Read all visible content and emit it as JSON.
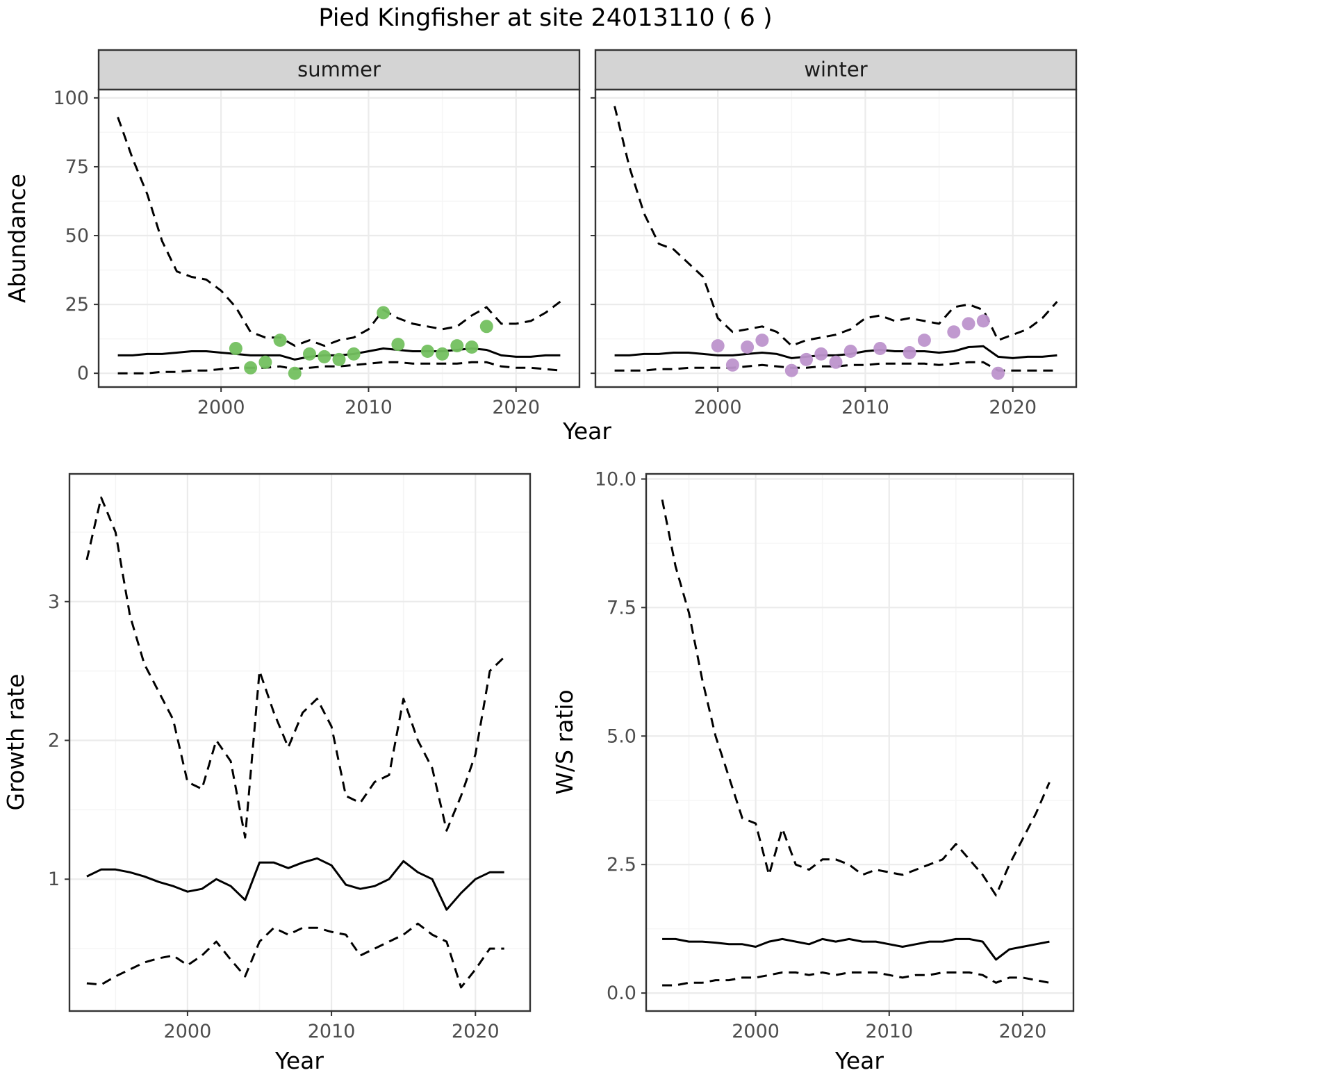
{
  "title": "Pied Kingfisher at site 24013110 ( 6 )",
  "style": {
    "summer_point_color": "#73C05F",
    "winter_point_color": "#BD93CC",
    "line_color": "#000000",
    "grid_major_color": "#EBEBEB",
    "grid_minor_color": "#F5F5F5",
    "panel_border_color": "#333333",
    "strip_fill": "#d4d4d4"
  },
  "chart_data": [
    {
      "id": "abundance-summer",
      "type": "line",
      "facet_label": "summer",
      "xlabel": "Year",
      "ylabel": "Abundance",
      "xlim": [
        1991.7,
        2024.3
      ],
      "ylim": [
        -5,
        103
      ],
      "xticks": [
        2000,
        2010,
        2020
      ],
      "xtick_labels": [
        "2000",
        "2010",
        "2020"
      ],
      "xticks_minor": [
        1995,
        2005,
        2015
      ],
      "yticks": [
        0,
        25,
        50,
        75,
        100
      ],
      "ytick_labels": [
        "0",
        "25",
        "50",
        "75",
        "100"
      ],
      "yticks_minor": [
        12.5,
        37.5,
        62.5,
        87.5
      ],
      "x": [
        1993,
        1994,
        1995,
        1996,
        1997,
        1998,
        1999,
        2000,
        2001,
        2002,
        2003,
        2004,
        2005,
        2006,
        2007,
        2008,
        2009,
        2010,
        2011,
        2012,
        2013,
        2014,
        2015,
        2016,
        2017,
        2018,
        2019,
        2020,
        2021,
        2022,
        2023
      ],
      "series": [
        {
          "name": "upper-ci",
          "style": "dashed",
          "values": [
            93,
            78,
            65,
            48,
            37,
            35,
            34,
            30,
            24,
            15,
            13,
            13,
            10,
            12,
            10,
            12,
            13,
            16,
            23,
            20,
            18,
            17,
            16,
            17,
            21,
            24,
            18,
            18,
            19,
            22,
            26
          ]
        },
        {
          "name": "median",
          "style": "solid",
          "values": [
            6.5,
            6.5,
            7,
            7,
            7.5,
            8,
            8,
            7.5,
            7,
            6.5,
            6.5,
            6.5,
            5,
            6,
            6.5,
            6.5,
            7,
            8,
            9,
            8.5,
            8,
            8,
            8,
            8.5,
            9,
            8.5,
            6.5,
            6,
            6,
            6.5,
            6.5
          ]
        },
        {
          "name": "lower-ci",
          "style": "dashed",
          "values": [
            0,
            0,
            0,
            0.5,
            0.5,
            1,
            1,
            1.5,
            2,
            2,
            2,
            2.5,
            1.5,
            2,
            2.5,
            2.5,
            3,
            3.5,
            4,
            4,
            3.5,
            3.5,
            3.5,
            3.5,
            4,
            4,
            2.5,
            2,
            2,
            1.5,
            1
          ]
        }
      ],
      "points": {
        "name": "observed-counts",
        "color": "#73C05F",
        "x": [
          2001,
          2002,
          2003,
          2004,
          2005,
          2006,
          2007,
          2008,
          2009,
          2011,
          2012,
          2014,
          2015,
          2016,
          2017,
          2018
        ],
        "y": [
          9,
          2,
          4,
          12,
          0,
          7,
          6,
          5,
          7,
          22,
          10.5,
          8,
          7,
          10,
          9.5,
          17
        ]
      }
    },
    {
      "id": "abundance-winter",
      "type": "line",
      "facet_label": "winter",
      "xlabel": "Year",
      "ylabel": "Abundance",
      "xlim": [
        1991.7,
        2024.3
      ],
      "ylim": [
        -5,
        103
      ],
      "xticks": [
        2000,
        2010,
        2020
      ],
      "xtick_labels": [
        "2000",
        "2010",
        "2020"
      ],
      "xticks_minor": [
        1995,
        2005,
        2015
      ],
      "yticks": [
        0,
        25,
        50,
        75,
        100
      ],
      "ytick_labels": [
        "0",
        "25",
        "50",
        "75",
        "100"
      ],
      "yticks_minor": [
        12.5,
        37.5,
        62.5,
        87.5
      ],
      "x": [
        1993,
        1994,
        1995,
        1996,
        1997,
        1998,
        1999,
        2000,
        2001,
        2002,
        2003,
        2004,
        2005,
        2006,
        2007,
        2008,
        2009,
        2010,
        2011,
        2012,
        2013,
        2014,
        2015,
        2016,
        2017,
        2018,
        2019,
        2020,
        2021,
        2022,
        2023
      ],
      "series": [
        {
          "name": "upper-ci",
          "style": "dashed",
          "values": [
            97,
            75,
            58,
            47,
            45,
            40,
            35,
            20,
            15,
            16,
            17,
            15,
            10,
            12,
            13,
            14,
            16,
            20,
            21,
            19,
            20,
            19,
            18,
            24,
            25,
            23,
            12,
            14,
            16,
            20,
            26
          ]
        },
        {
          "name": "median",
          "style": "solid",
          "values": [
            6.5,
            6.5,
            7,
            7,
            7.5,
            7.5,
            7,
            6.5,
            6.5,
            7,
            7.5,
            7,
            5.5,
            6,
            6.5,
            6.5,
            7,
            8,
            8.5,
            8,
            8,
            8,
            7.5,
            8,
            9.5,
            9.8,
            6,
            5.5,
            6,
            6,
            6.5
          ]
        },
        {
          "name": "lower-ci",
          "style": "dashed",
          "values": [
            1,
            1,
            1,
            1.5,
            1.5,
            2,
            2,
            2,
            2,
            2.5,
            3,
            2.5,
            2,
            2,
            2.5,
            2.5,
            3,
            3,
            3.5,
            3.5,
            3.5,
            3.5,
            3,
            3.5,
            4,
            4,
            1,
            1,
            1,
            1,
            1
          ]
        }
      ],
      "points": {
        "name": "observed-counts",
        "color": "#BD93CC",
        "x": [
          2000,
          2001,
          2002,
          2003,
          2005,
          2006,
          2007,
          2008,
          2009,
          2011,
          2013,
          2014,
          2016,
          2017,
          2018,
          2019
        ],
        "y": [
          10,
          3,
          9.5,
          12,
          1,
          5,
          7,
          4,
          8,
          9,
          7.5,
          12,
          15,
          18,
          19,
          0
        ]
      }
    },
    {
      "id": "growth-rate",
      "type": "line",
      "facet_label": "",
      "xlabel": "Year",
      "ylabel": "Growth rate",
      "xlim": [
        1991.8,
        2023.8
      ],
      "ylim": [
        0.05,
        3.92
      ],
      "xticks": [
        2000,
        2010,
        2020
      ],
      "xtick_labels": [
        "2000",
        "2010",
        "2020"
      ],
      "xticks_minor": [
        1995,
        2005,
        2015
      ],
      "yticks": [
        1,
        2,
        3
      ],
      "ytick_labels": [
        "1",
        "2",
        "3"
      ],
      "yticks_minor": [
        0.5,
        1.5,
        2.5,
        3.5
      ],
      "x": [
        1993,
        1994,
        1995,
        1996,
        1997,
        1998,
        1999,
        2000,
        2001,
        2002,
        2003,
        2004,
        2005,
        2006,
        2007,
        2008,
        2009,
        2010,
        2011,
        2012,
        2013,
        2014,
        2015,
        2016,
        2017,
        2018,
        2019,
        2020,
        2021,
        2022
      ],
      "series": [
        {
          "name": "upper-ci",
          "style": "dashed",
          "values": [
            3.3,
            3.75,
            3.5,
            2.9,
            2.55,
            2.35,
            2.15,
            1.7,
            1.65,
            2.0,
            1.85,
            1.3,
            2.5,
            2.2,
            1.95,
            2.2,
            2.3,
            2.1,
            1.6,
            1.55,
            1.7,
            1.75,
            2.3,
            2.0,
            1.8,
            1.35,
            1.6,
            1.9,
            2.5,
            2.6
          ]
        },
        {
          "name": "median",
          "style": "solid",
          "values": [
            1.02,
            1.07,
            1.07,
            1.05,
            1.02,
            0.98,
            0.95,
            0.91,
            0.93,
            1.0,
            0.95,
            0.85,
            1.12,
            1.12,
            1.08,
            1.12,
            1.15,
            1.1,
            0.96,
            0.93,
            0.95,
            1.0,
            1.13,
            1.05,
            1.0,
            0.78,
            0.9,
            1.0,
            1.05,
            1.05
          ]
        },
        {
          "name": "lower-ci",
          "style": "dashed",
          "values": [
            0.25,
            0.24,
            0.3,
            0.35,
            0.4,
            0.43,
            0.45,
            0.38,
            0.45,
            0.55,
            0.42,
            0.3,
            0.55,
            0.65,
            0.6,
            0.65,
            0.65,
            0.62,
            0.6,
            0.45,
            0.5,
            0.55,
            0.6,
            0.68,
            0.6,
            0.55,
            0.22,
            0.35,
            0.5,
            0.5
          ]
        }
      ]
    },
    {
      "id": "ws-ratio",
      "type": "line",
      "facet_label": "",
      "xlabel": "Year",
      "ylabel": "W/S ratio",
      "xlim": [
        1991.8,
        2023.8
      ],
      "ylim": [
        -0.35,
        10.1
      ],
      "xticks": [
        2000,
        2010,
        2020
      ],
      "xtick_labels": [
        "2000",
        "2010",
        "2020"
      ],
      "xticks_minor": [
        1995,
        2005,
        2015
      ],
      "yticks": [
        0,
        2.5,
        5,
        7.5,
        10
      ],
      "ytick_labels": [
        "0.0",
        "2.5",
        "5.0",
        "7.5",
        "10.0"
      ],
      "yticks_minor": [
        1.25,
        3.75,
        6.25,
        8.75
      ],
      "x": [
        1993,
        1994,
        1995,
        1996,
        1997,
        1998,
        1999,
        2000,
        2001,
        2002,
        2003,
        2004,
        2005,
        2006,
        2007,
        2008,
        2009,
        2010,
        2011,
        2012,
        2013,
        2014,
        2015,
        2016,
        2017,
        2018,
        2019,
        2020,
        2021,
        2022
      ],
      "series": [
        {
          "name": "upper-ci",
          "style": "dashed",
          "values": [
            9.6,
            8.3,
            7.4,
            6.1,
            5.0,
            4.2,
            3.4,
            3.3,
            2.3,
            3.2,
            2.5,
            2.4,
            2.6,
            2.6,
            2.5,
            2.3,
            2.4,
            2.35,
            2.3,
            2.4,
            2.5,
            2.6,
            2.9,
            2.6,
            2.3,
            1.9,
            2.5,
            3.0,
            3.5,
            4.1
          ]
        },
        {
          "name": "median",
          "style": "solid",
          "values": [
            1.05,
            1.05,
            1.0,
            1.0,
            0.98,
            0.95,
            0.95,
            0.9,
            1.0,
            1.05,
            1.0,
            0.95,
            1.05,
            1.0,
            1.05,
            1.0,
            1.0,
            0.95,
            0.9,
            0.95,
            1.0,
            1.0,
            1.05,
            1.05,
            1.0,
            0.65,
            0.85,
            0.9,
            0.95,
            1.0
          ]
        },
        {
          "name": "lower-ci",
          "style": "dashed",
          "values": [
            0.15,
            0.15,
            0.2,
            0.2,
            0.25,
            0.25,
            0.3,
            0.3,
            0.35,
            0.4,
            0.4,
            0.35,
            0.4,
            0.35,
            0.4,
            0.4,
            0.4,
            0.35,
            0.3,
            0.35,
            0.35,
            0.4,
            0.4,
            0.4,
            0.35,
            0.2,
            0.3,
            0.3,
            0.25,
            0.2
          ]
        }
      ]
    }
  ]
}
